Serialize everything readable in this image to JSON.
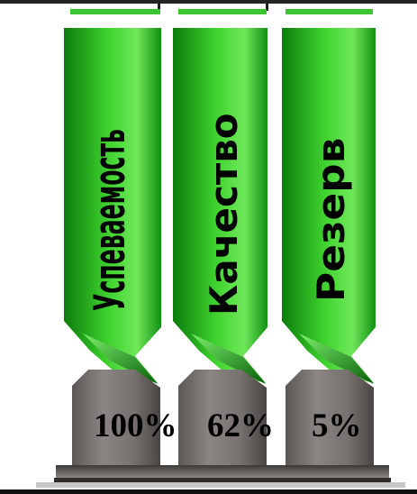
{
  "ribbons": [
    {
      "label": "Успеваемость",
      "percent": "100%"
    },
    {
      "label": "Качество",
      "percent": "62%"
    },
    {
      "label": "Резерв",
      "percent": "5%"
    }
  ],
  "colors": {
    "green_light": "#6fe85a",
    "green_mid": "#23b21d",
    "green_dark": "#0c6e0c",
    "pedestal": "#77716f",
    "pedestal_dark": "#4a4542"
  }
}
